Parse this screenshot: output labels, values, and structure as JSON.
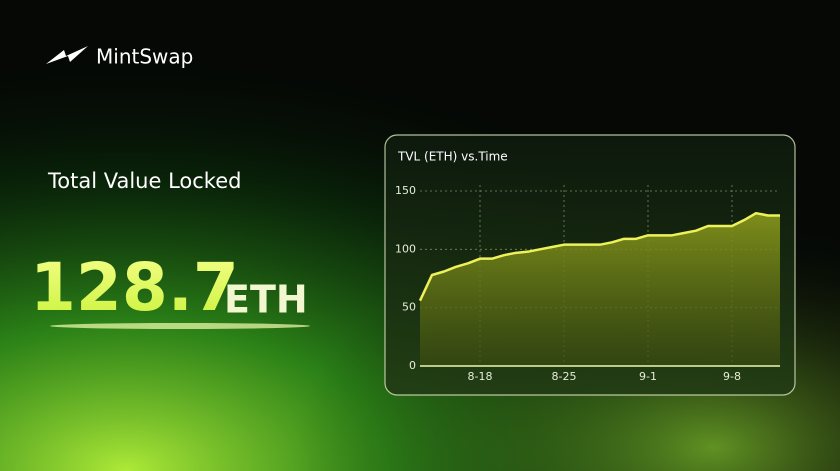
{
  "brand": "MintSwap",
  "headline": {
    "label": "Total Value Locked",
    "value": "128.7",
    "unit": "ETH"
  },
  "chart_data": {
    "type": "area",
    "title": "TVL (ETH) vs.Time",
    "categories": [
      null,
      null,
      null,
      null,
      null,
      "8-18",
      null,
      null,
      null,
      null,
      null,
      null,
      "8-25",
      null,
      null,
      null,
      null,
      null,
      null,
      "9-1",
      null,
      null,
      null,
      null,
      null,
      null,
      "9-8",
      null,
      null,
      null,
      null
    ],
    "values": [
      56,
      78,
      81,
      85,
      88,
      92,
      92,
      95,
      97,
      98,
      100,
      102,
      104,
      104,
      104,
      104,
      106,
      109,
      109,
      112,
      112,
      112,
      114,
      116,
      120,
      120,
      120,
      125,
      131,
      129,
      129
    ],
    "color": "#eef25a",
    "ylim": [
      0,
      150
    ],
    "yticks": [
      0,
      50,
      100,
      150
    ],
    "grid": true
  }
}
